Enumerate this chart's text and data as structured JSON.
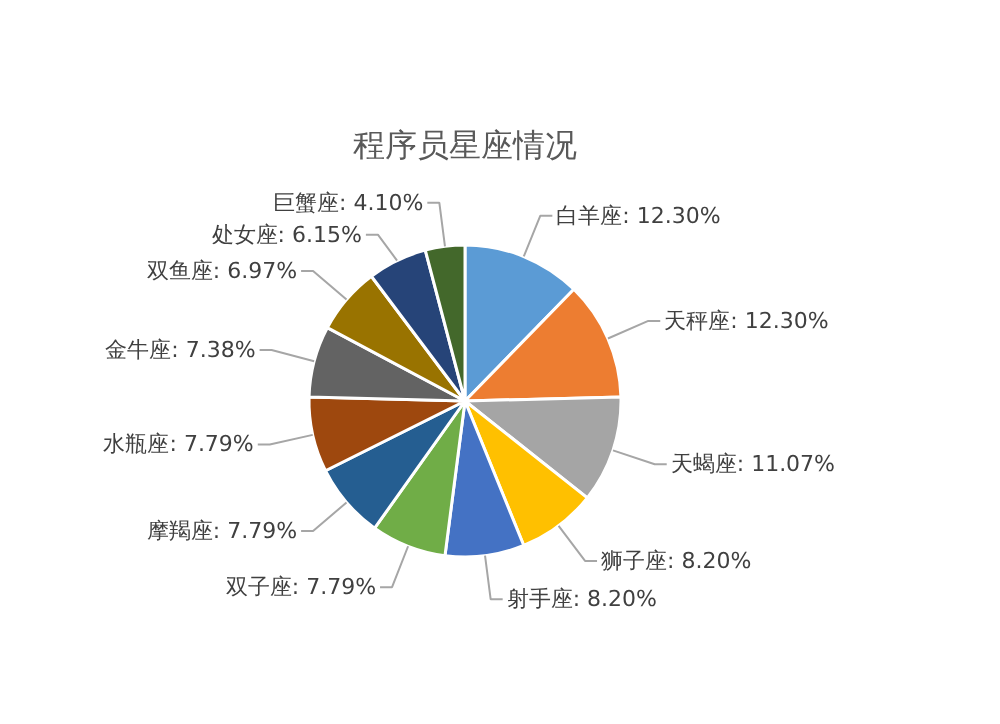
{
  "chart_data": {
    "type": "pie",
    "title": "程序员星座情况",
    "categories": [
      "白羊座",
      "天秤座",
      "天蝎座",
      "狮子座",
      "射手座",
      "双子座",
      "摩羯座",
      "水瓶座",
      "金牛座",
      "双鱼座",
      "处女座",
      "巨蟹座"
    ],
    "values": [
      12.3,
      12.3,
      11.07,
      8.2,
      8.2,
      7.79,
      7.79,
      7.79,
      7.38,
      6.97,
      6.15,
      4.1
    ],
    "value_labels": [
      "12.30%",
      "12.30%",
      "11.07%",
      "8.20%",
      "8.20%",
      "7.79%",
      "7.79%",
      "7.79%",
      "7.38%",
      "6.97%",
      "6.15%",
      "4.10%"
    ],
    "colors": [
      "#5b9bd5",
      "#ed7d31",
      "#a5a5a5",
      "#ffc000",
      "#4472c4",
      "#70ad47",
      "#255e91",
      "#9e480e",
      "#636363",
      "#997300",
      "#264478",
      "#43682b"
    ]
  }
}
